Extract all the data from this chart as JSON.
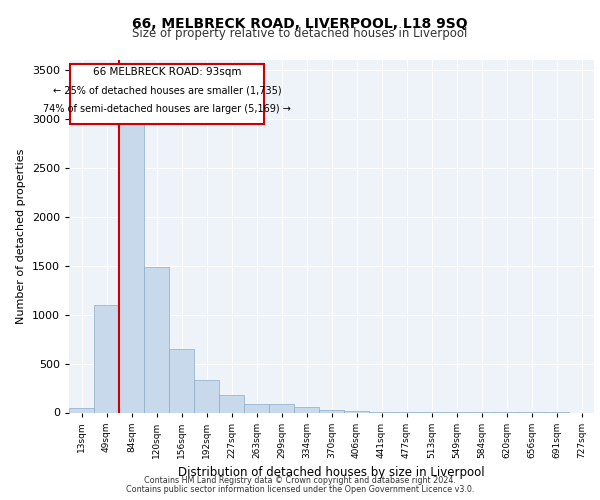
{
  "title_line1": "66, MELBRECK ROAD, LIVERPOOL, L18 9SQ",
  "title_line2": "Size of property relative to detached houses in Liverpool",
  "xlabel": "Distribution of detached houses by size in Liverpool",
  "ylabel": "Number of detached properties",
  "footer_line1": "Contains HM Land Registry data © Crown copyright and database right 2024.",
  "footer_line2": "Contains public sector information licensed under the Open Government Licence v3.0.",
  "annotation_line1": "66 MELBRECK ROAD: 93sqm",
  "annotation_line2": "← 25% of detached houses are smaller (1,735)",
  "annotation_line3": "74% of semi-detached houses are larger (5,169) →",
  "categories": [
    "13sqm",
    "49sqm",
    "84sqm",
    "120sqm",
    "156sqm",
    "192sqm",
    "227sqm",
    "263sqm",
    "299sqm",
    "334sqm",
    "370sqm",
    "406sqm",
    "441sqm",
    "477sqm",
    "513sqm",
    "549sqm",
    "584sqm",
    "620sqm",
    "656sqm",
    "691sqm",
    "727sqm"
  ],
  "values": [
    50,
    1100,
    3450,
    1490,
    645,
    330,
    175,
    90,
    90,
    52,
    30,
    15,
    10,
    8,
    5,
    3,
    3,
    2,
    1,
    1,
    0
  ],
  "bar_color": "#c9d9ec",
  "bar_edgecolor": "#8bacc8",
  "red_line_color": "#cc0000",
  "background_color": "#eef2f9",
  "grid_color": "#ffffff",
  "ylim": [
    0,
    3600
  ],
  "yticks": [
    0,
    500,
    1000,
    1500,
    2000,
    2500,
    3000,
    3500
  ],
  "red_line_xindex": 2
}
